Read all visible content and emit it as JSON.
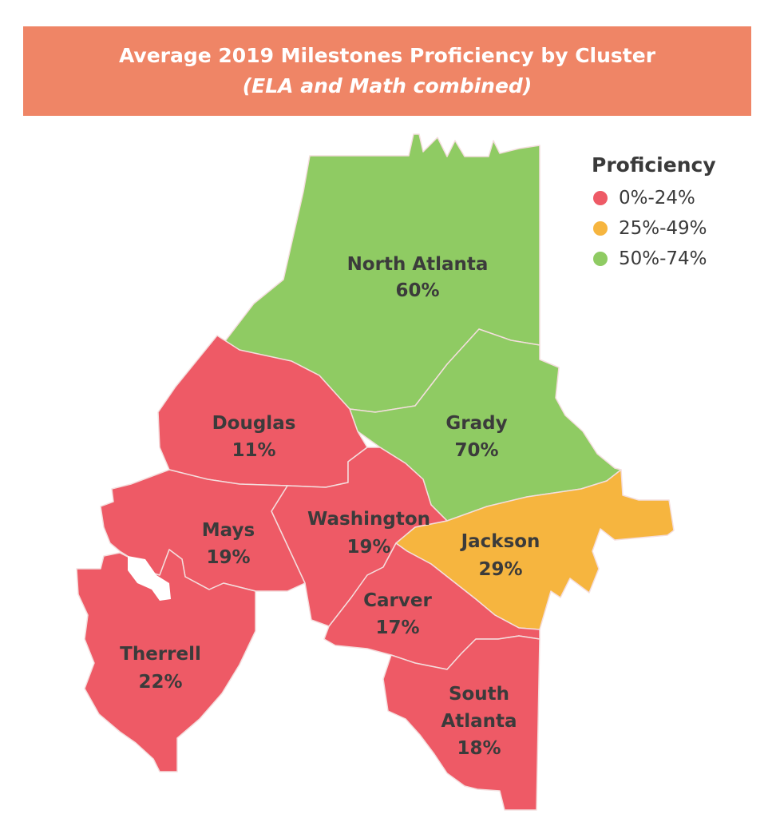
{
  "header": {
    "title": "Average 2019 Milestones Proficiency by Cluster",
    "subtitle": "(ELA and Math combined)"
  },
  "legend": {
    "title": "Proficiency",
    "items": [
      {
        "label": "0%-24%",
        "color": "#ee5a66"
      },
      {
        "label": "25%-49%",
        "color": "#f6b53f"
      },
      {
        "label": "50%-74%",
        "color": "#8fcb63"
      }
    ]
  },
  "clusters": [
    {
      "id": "north-atlanta",
      "line1": "North Atlanta",
      "line2": "60%",
      "value": 60,
      "color": "#8fcb63"
    },
    {
      "id": "grady",
      "line1": "Grady",
      "line2": "70%",
      "value": 70,
      "color": "#8fcb63"
    },
    {
      "id": "douglas",
      "line1": "Douglas",
      "line2": "11%",
      "value": 11,
      "color": "#ee5a66"
    },
    {
      "id": "washington",
      "line1": "Washington",
      "line2": "19%",
      "value": 19,
      "color": "#ee5a66"
    },
    {
      "id": "jackson",
      "line1": "Jackson",
      "line2": "29%",
      "value": 29,
      "color": "#f6b53f"
    },
    {
      "id": "mays",
      "line1": "Mays",
      "line2": "19%",
      "value": 19,
      "color": "#ee5a66"
    },
    {
      "id": "carver",
      "line1": "Carver",
      "line2": "17%",
      "value": 17,
      "color": "#ee5a66"
    },
    {
      "id": "therrell",
      "line1": "Therrell",
      "line2": "22%",
      "value": 22,
      "color": "#ee5a66"
    },
    {
      "id": "south-atlanta",
      "line1": "South",
      "line1b": "Atlanta",
      "line2": "18%",
      "value": 18,
      "color": "#ee5a66"
    }
  ]
}
